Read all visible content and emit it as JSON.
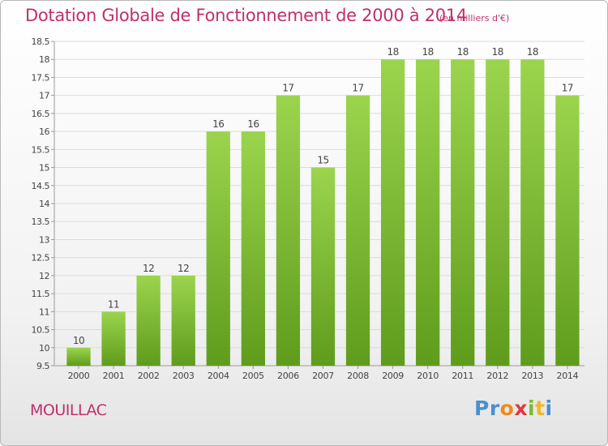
{
  "title": "Dotation Globale de Fonctionnement de 2000 à 2014",
  "subtitle": "(en milliers d'€)",
  "commune": "MOUILLAC",
  "logo": {
    "letters": [
      "P",
      "r",
      "o",
      "x",
      "i",
      "t",
      "i"
    ],
    "colors": [
      "#4a8fd0",
      "#4a8fd0",
      "#f08a1c",
      "#e03a3a",
      "#7cba2a",
      "#f0b82a",
      "#4a8fd0"
    ]
  },
  "colors": {
    "bar_top": "#9bd54e",
    "bar_bottom": "#5f9c1c",
    "title": "#c0306a"
  },
  "chart_data": {
    "type": "bar",
    "title": "Dotation Globale de Fonctionnement de 2000 à 2014",
    "subtitle": "(en milliers d'€)",
    "xlabel": "",
    "ylabel": "",
    "categories": [
      "2000",
      "2001",
      "2002",
      "2003",
      "2004",
      "2005",
      "2006",
      "2007",
      "2008",
      "2009",
      "2010",
      "2011",
      "2012",
      "2013",
      "2014"
    ],
    "values": [
      10,
      11,
      12,
      12,
      16,
      16,
      17,
      15,
      17,
      18,
      18,
      18,
      18,
      18,
      17
    ],
    "data_labels": [
      "10",
      "11",
      "12",
      "12",
      "16",
      "16",
      "17",
      "15",
      "17",
      "18",
      "18",
      "18",
      "18",
      "18",
      "17"
    ],
    "ylim": [
      9.5,
      18.5
    ],
    "yticks": [
      9.5,
      10,
      10.5,
      11,
      11.5,
      12,
      12.5,
      13,
      13.5,
      14,
      14.5,
      15,
      15.5,
      16,
      16.5,
      17,
      17.5,
      18,
      18.5
    ],
    "ytick_labels": [
      "9.5",
      "10",
      "10.5",
      "11",
      "11.5",
      "12",
      "12.5",
      "13",
      "13.5",
      "14",
      "14.5",
      "15",
      "15.5",
      "16",
      "16.5",
      "17",
      "17.5",
      "18",
      "18.5"
    ],
    "grid": true,
    "legend": "none"
  }
}
